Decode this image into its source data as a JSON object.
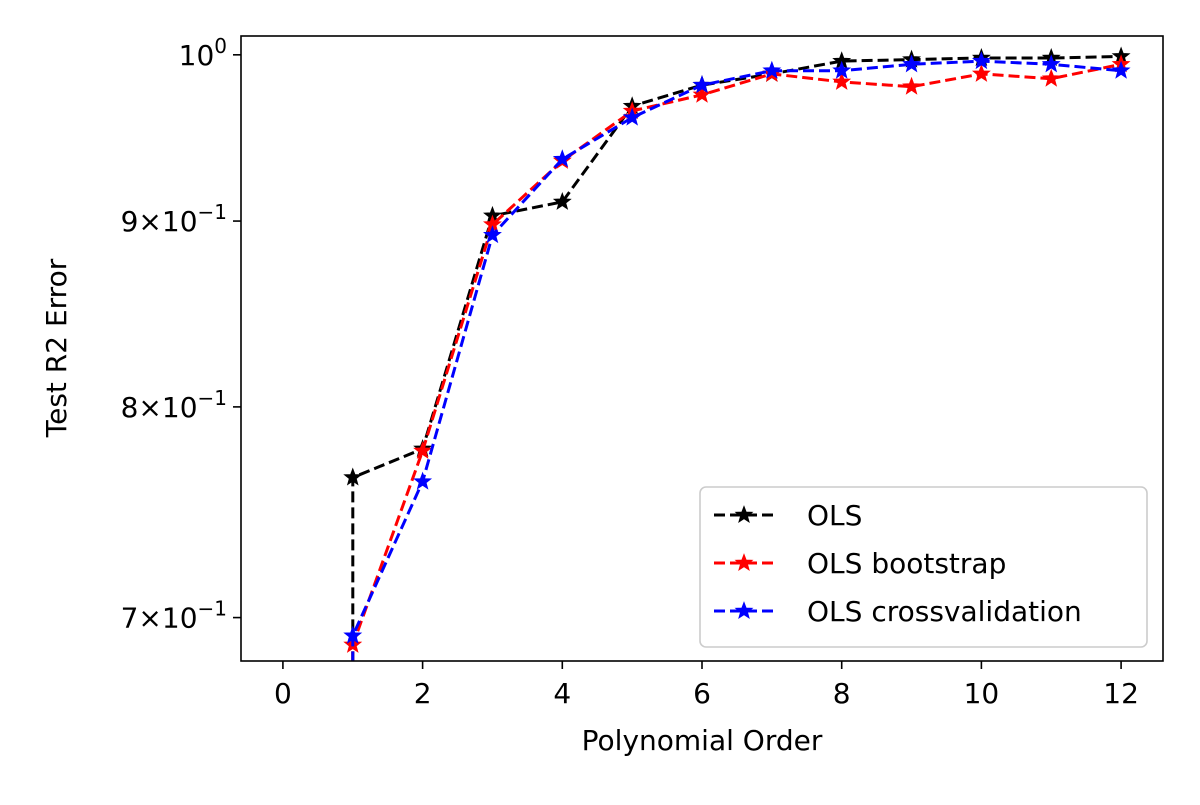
{
  "chart_data": {
    "type": "line",
    "title": "",
    "xlabel": "Polynomial Order",
    "ylabel": "Test R2 Error",
    "x_scale": "linear",
    "y_scale": "log",
    "xlim": [
      -0.6,
      12.6
    ],
    "ylim": [
      0.681,
      1.012
    ],
    "x_ticks": [
      0,
      2,
      4,
      6,
      8,
      10,
      12
    ],
    "x_tick_labels": [
      "0",
      "2",
      "4",
      "6",
      "8",
      "10",
      "12"
    ],
    "y_ticks": [
      {
        "value": 0.7,
        "mantissa": "7",
        "exponent": "−1"
      },
      {
        "value": 0.8,
        "mantissa": "8",
        "exponent": "−1"
      },
      {
        "value": 0.9,
        "mantissa": "9",
        "exponent": "−1"
      },
      {
        "value": 1.0,
        "mantissa": "",
        "exponent": "0"
      }
    ],
    "y_tick_base": "10",
    "y_tick_times": "×",
    "grid": false,
    "legend_position": "bottom-right",
    "x": [
      1,
      2,
      3,
      4,
      5,
      6,
      7,
      8,
      9,
      10,
      11,
      12
    ],
    "series": [
      {
        "name": "OLS",
        "color": "#000000",
        "marker": "star",
        "linestyle": "dashed",
        "values": [
          0.765,
          0.779,
          0.903,
          0.911,
          0.968,
          0.981,
          0.988,
          0.996,
          0.997,
          0.998,
          0.998,
          0.999
        ]
      },
      {
        "name": "OLS bootstrap",
        "color": "#ff0000",
        "marker": "star",
        "linestyle": "dashed",
        "values": [
          0.688,
          0.778,
          0.898,
          0.935,
          0.965,
          0.975,
          0.988,
          0.983,
          0.98,
          0.988,
          0.985,
          0.994
        ]
      },
      {
        "name": "OLS crossvalidation",
        "color": "#0000ff",
        "marker": "star",
        "linestyle": "dashed",
        "values": [
          0.692,
          0.763,
          0.892,
          0.936,
          0.961,
          0.981,
          0.99,
          0.99,
          0.994,
          0.996,
          0.994,
          0.99
        ]
      }
    ],
    "series_extension": {
      "x": 1,
      "y_below_axis": 0.66,
      "applies_to": [
        "OLS",
        "OLS bootstrap",
        "OLS crossvalidation"
      ]
    }
  }
}
